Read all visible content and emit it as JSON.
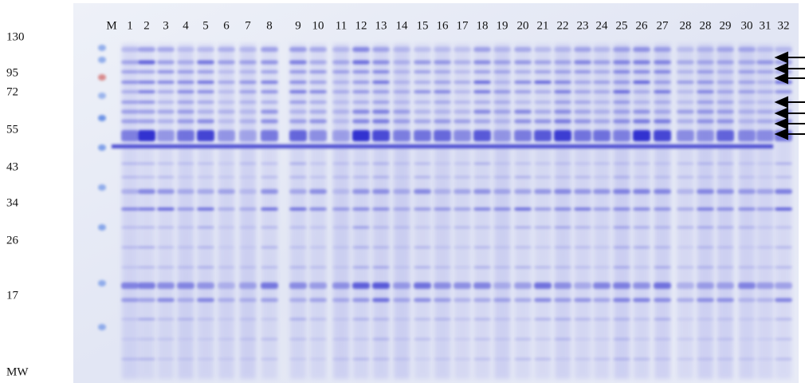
{
  "mw_labels": [
    "130",
    "95",
    "72",
    "55",
    "43",
    "34",
    "26",
    "17",
    "MW"
  ],
  "lane_labels": [
    "M",
    "1",
    "2",
    "3",
    "4",
    "5",
    "6",
    "7",
    "8",
    "9",
    "10",
    "11",
    "12",
    "13",
    "14",
    "15",
    "16",
    "17",
    "18",
    "19",
    "20",
    "21",
    "22",
    "23",
    "24",
    "25",
    "26",
    "27",
    "28",
    "28",
    "29",
    "30",
    "31",
    "32"
  ]
}
